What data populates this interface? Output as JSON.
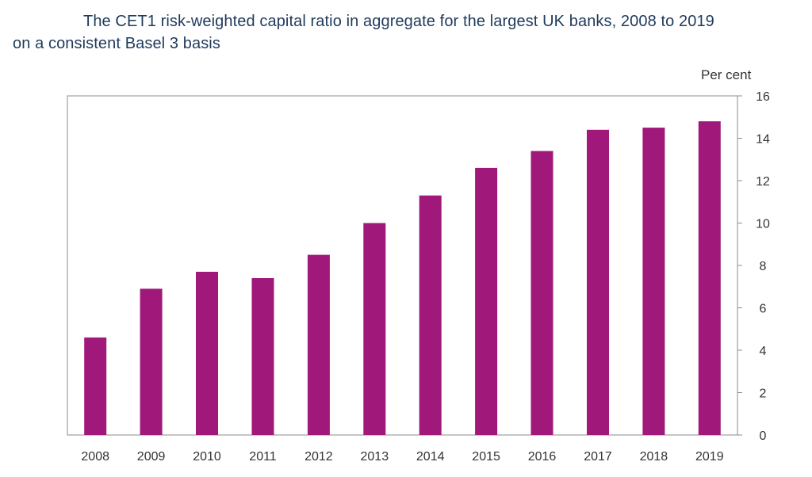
{
  "chart_title": {
    "line1": "The CET1 risk-weighted capital ratio in aggregate for the largest UK banks, 2008 to 2019",
    "line2": "on a consistent Basel 3 basis"
  },
  "colors": {
    "bar": "#a0197a",
    "title": "#1f3a5c"
  },
  "chart_data": {
    "type": "bar",
    "title": "The CET1 risk-weighted capital ratio in aggregate for the largest UK banks, 2008 to 2019 on a consistent Basel 3 basis",
    "xlabel": "",
    "ylabel": "Per cent",
    "y_axis_side": "right",
    "ylim": [
      0,
      16
    ],
    "yticks": [
      0,
      2,
      4,
      6,
      8,
      10,
      12,
      14,
      16
    ],
    "grid": false,
    "legend": "none",
    "categories": [
      "2008",
      "2009",
      "2010",
      "2011",
      "2012",
      "2013",
      "2014",
      "2015",
      "2016",
      "2017",
      "2018",
      "2019"
    ],
    "values": [
      4.6,
      6.9,
      7.7,
      7.4,
      8.5,
      10.0,
      11.3,
      12.6,
      13.4,
      14.4,
      14.5,
      14.8
    ]
  }
}
